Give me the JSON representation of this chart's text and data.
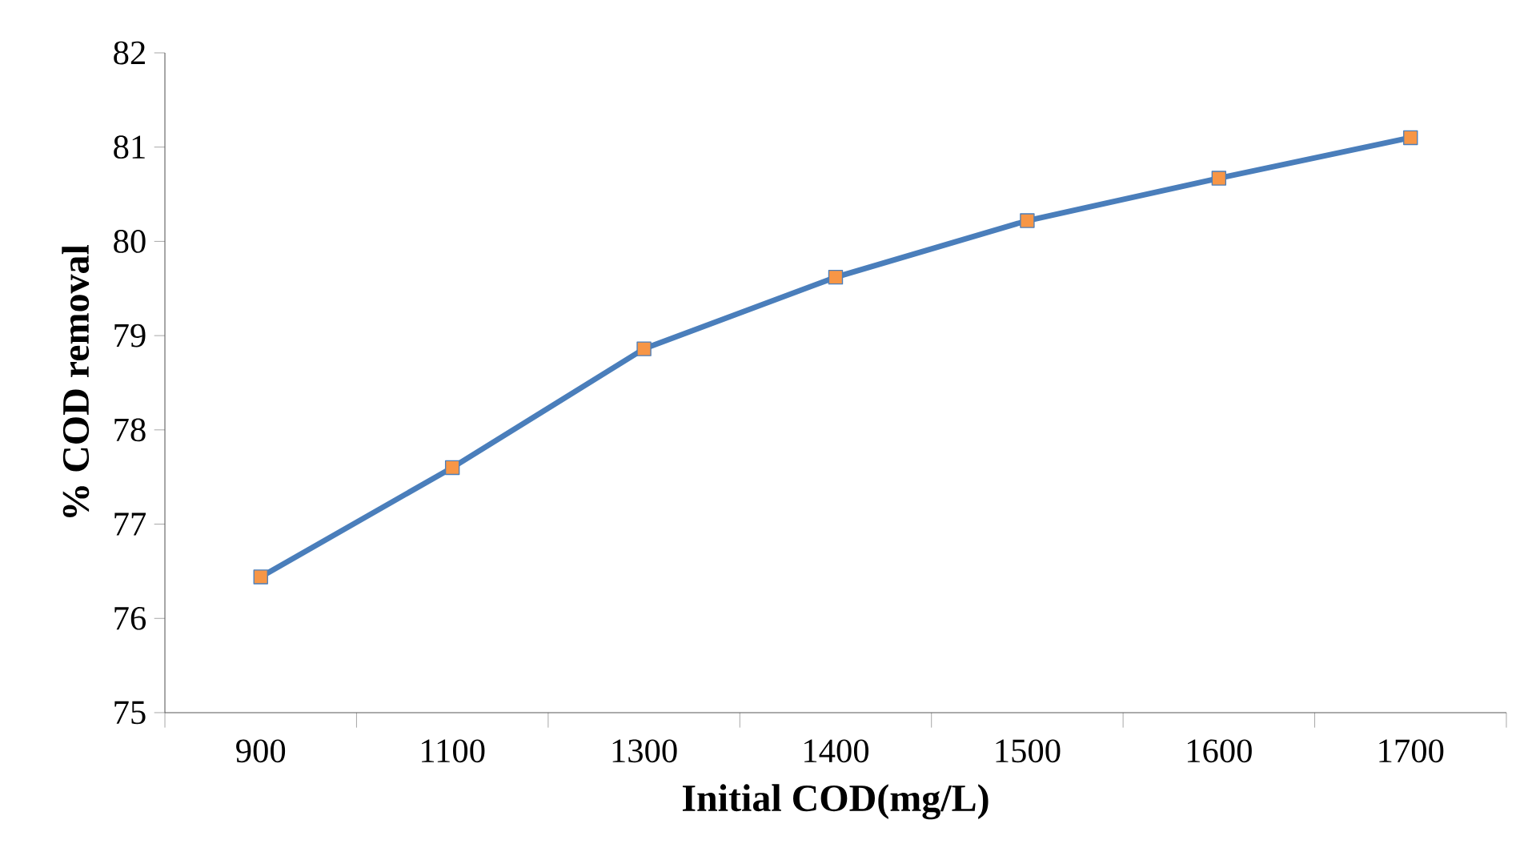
{
  "chart_data": {
    "type": "line",
    "xlabel": "Initial COD(mg/L)",
    "ylabel": "% COD removal",
    "categories": [
      "900",
      "1100",
      "1300",
      "1400",
      "1500",
      "1600",
      "1700"
    ],
    "series": [
      {
        "color": "#4a7ebb",
        "values": [
          76.44,
          77.6,
          78.86,
          79.62,
          80.22,
          80.67,
          81.1
        ]
      }
    ],
    "ylim": [
      75,
      82
    ],
    "yticks": [
      75,
      76,
      77,
      78,
      79,
      80,
      81,
      82
    ],
    "marker": "square",
    "line_style": "solid",
    "grid": false
  }
}
